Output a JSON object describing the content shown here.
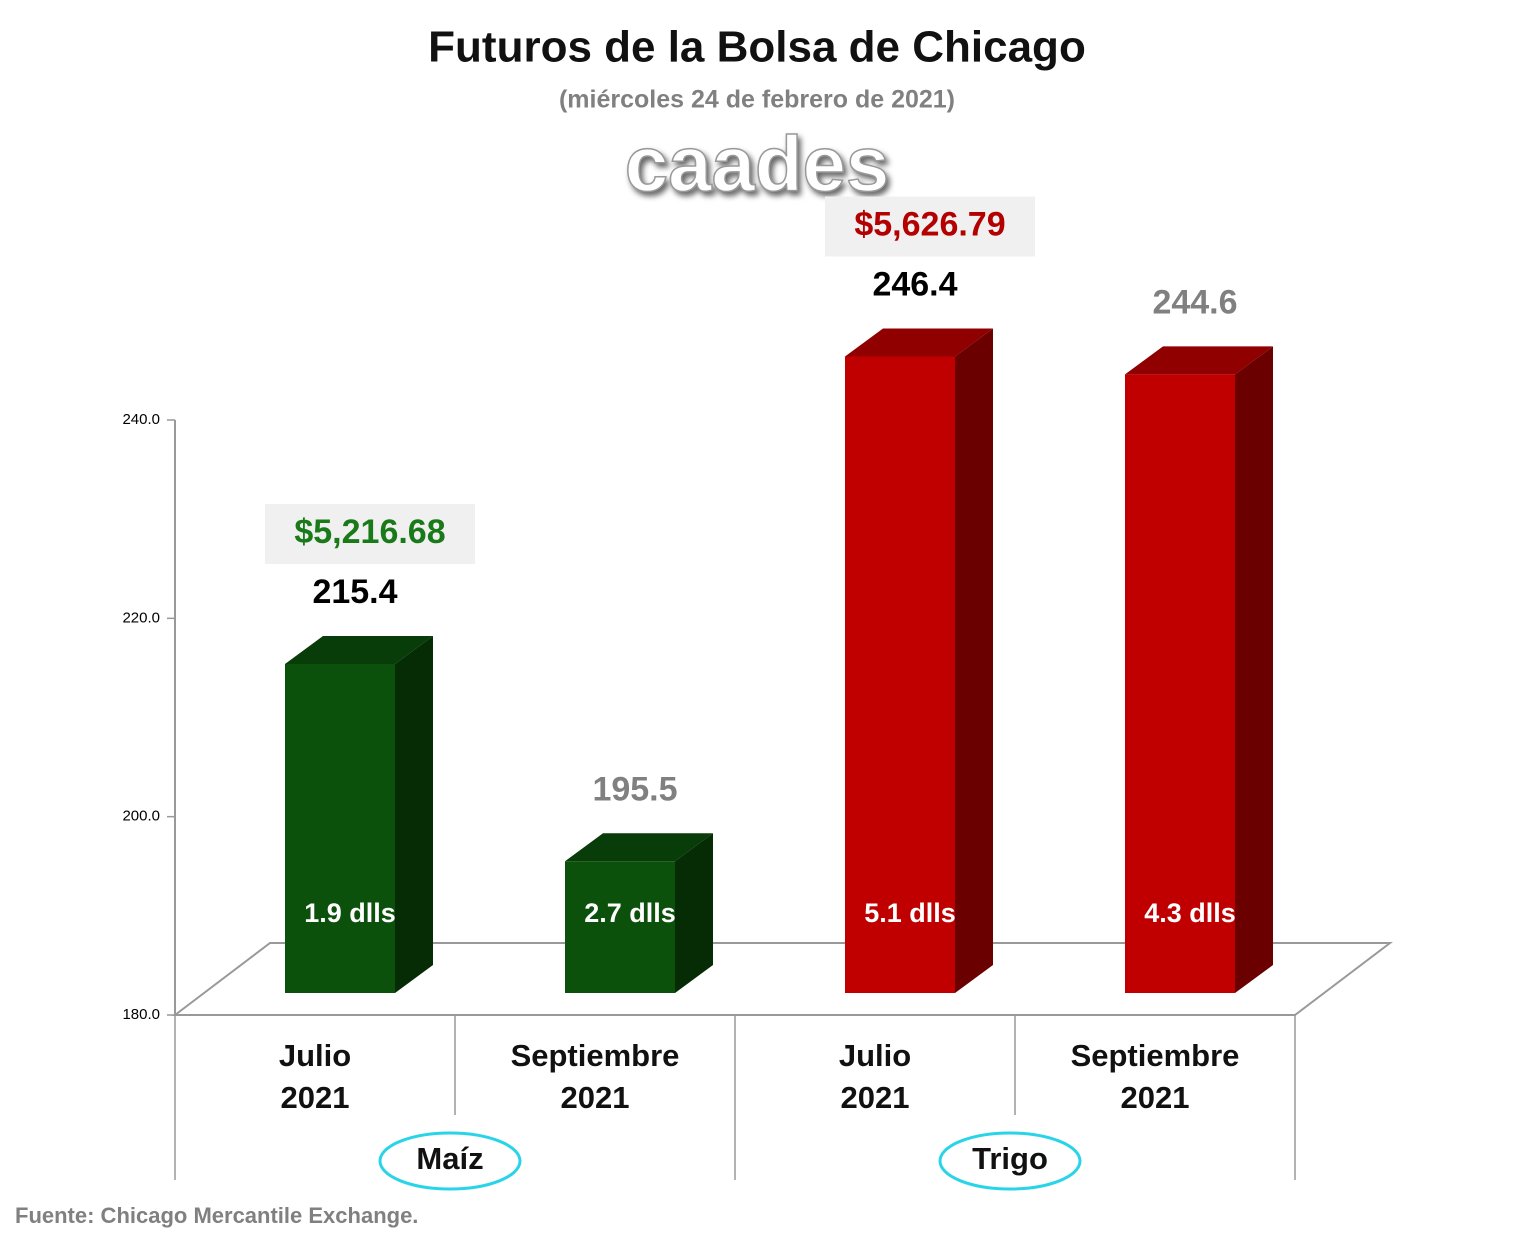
{
  "chart_data": {
    "type": "bar3d",
    "title": "Futuros de la Bolsa de Chicago",
    "subtitle": "(miércoles 24 de febrero de 2021)",
    "watermark": "caades",
    "source": "Fuente: Chicago Mercantile Exchange.",
    "categories": [
      "Julio 2021",
      "Septiembre 2021",
      "Julio 2021",
      "Septiembre 2021"
    ],
    "values": [
      215.4,
      195.5,
      246.4,
      244.6
    ],
    "colors": [
      "#0b500b",
      "#0b500b",
      "#c00000",
      "#c00000"
    ],
    "value_label_colors": [
      "#000000",
      "#808080",
      "#000000",
      "#808080"
    ],
    "bar_annotations": [
      "1.9 dlls",
      "2.7 dlls",
      "5.1 dlls",
      "4.3 dlls"
    ],
    "groups": [
      {
        "name": "Maíz",
        "price": "$5,216.68",
        "color": "#1a7a1a"
      },
      {
        "name": "Trigo",
        "price": "$5,626.79",
        "color": "#b30000"
      }
    ],
    "ylim": [
      180,
      240
    ],
    "yticks": [
      {
        "value": 180,
        "label": "180.0"
      },
      {
        "value": 200,
        "label": "200.0"
      },
      {
        "value": 220,
        "label": "220.0"
      },
      {
        "value": 240,
        "label": "240.0"
      }
    ]
  }
}
